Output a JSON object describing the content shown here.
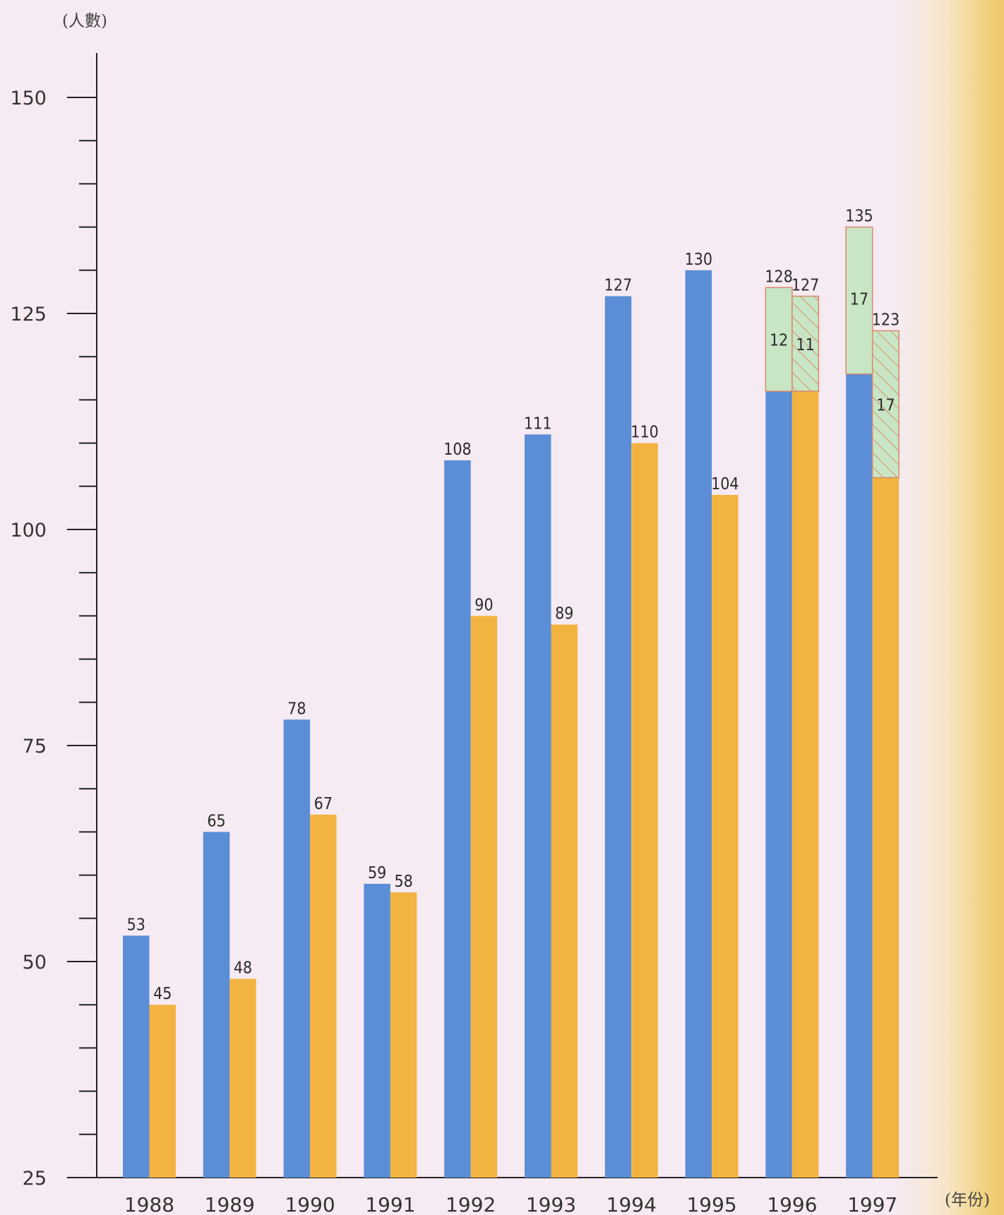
{
  "chart_data": {
    "type": "bar",
    "ylabel": "(人數)",
    "xlabel": "(年份)",
    "ylim": [
      25,
      150
    ],
    "y_ticks_labeled": [
      25,
      50,
      75,
      100,
      125,
      150
    ],
    "y_minor_step": 5,
    "categories": [
      "1988",
      "1989",
      "1990",
      "1991",
      "1992",
      "1993",
      "1994",
      "1995",
      "1996",
      "1997"
    ],
    "series": [
      {
        "color": "#5b8ed6",
        "values": [
          53,
          65,
          78,
          59,
          108,
          111,
          127,
          130,
          128,
          135
        ],
        "stacked_top": [
          null,
          null,
          null,
          null,
          null,
          null,
          null,
          null,
          12,
          17
        ],
        "stacked_top_color": "#c8e6c6",
        "stacked_top_pattern": "solid"
      },
      {
        "color": "#f3b341",
        "values": [
          45,
          48,
          67,
          58,
          90,
          89,
          110,
          104,
          127,
          123
        ],
        "stacked_top": [
          null,
          null,
          null,
          null,
          null,
          null,
          null,
          null,
          11,
          17
        ],
        "stacked_top_color": "#c8e6c6",
        "stacked_top_pattern": "hatched"
      }
    ],
    "grid": false,
    "legend": "none"
  }
}
